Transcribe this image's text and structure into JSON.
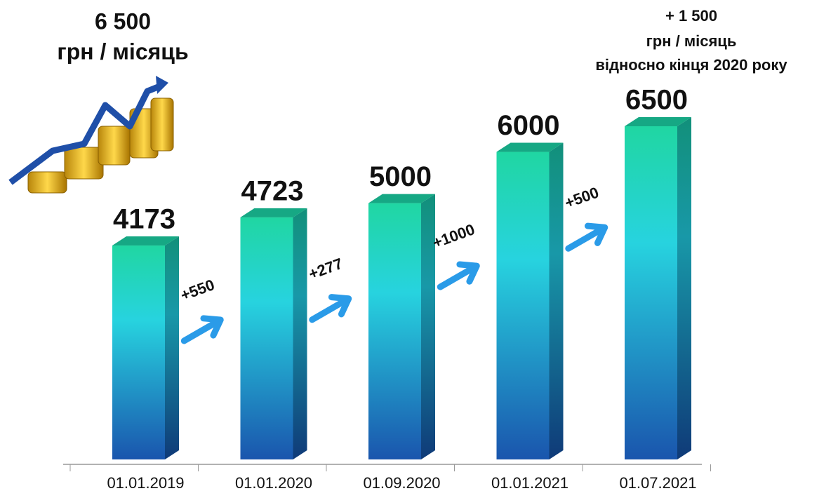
{
  "chart_data": {
    "type": "bar3d",
    "headline": {
      "amount": "6 500",
      "unit": "грн / місяць"
    },
    "note": {
      "amount": "+ 1 500",
      "unit": "грн / місяць",
      "text": "відносно кінця 2020 року"
    },
    "categories": [
      "01.01.2019",
      "01.01.2020",
      "01.09.2020",
      "01.01.2021",
      "01.07.2021"
    ],
    "values": [
      4173,
      4723,
      5000,
      6000,
      6500
    ],
    "increments": [
      "+550",
      "+277",
      "+1000",
      "+500"
    ]
  }
}
